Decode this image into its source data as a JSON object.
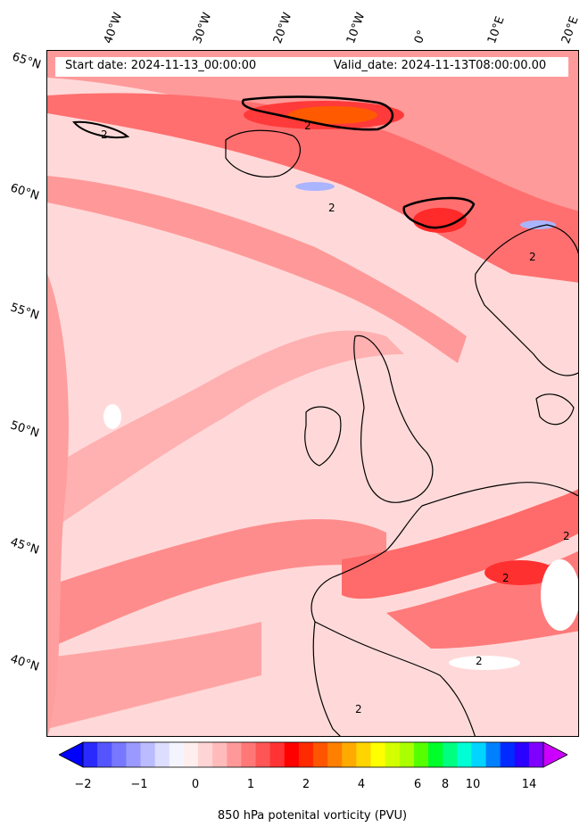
{
  "header": {
    "start_date": "Start date: 2024-11-13_00:00:00",
    "valid_date": "Valid_date: 2024-11-13T08:00:00.00"
  },
  "latitude_labels": [
    "65°N",
    "60°N",
    "55°N",
    "50°N",
    "45°N",
    "40°N"
  ],
  "longitude_labels": [
    "40°W",
    "30°W",
    "20°W",
    "10°W",
    "0°",
    "10°E",
    "20°E"
  ],
  "contour_label": "2",
  "colorbar": {
    "label": "850 hPa potenital vorticity (PVU)",
    "ticks": [
      "−2",
      "−1",
      "0",
      "1",
      "2",
      "4",
      "6",
      "8",
      "10",
      "14"
    ],
    "colors": [
      "#0000ff",
      "#2a2aff",
      "#5555ff",
      "#7777ff",
      "#9999ff",
      "#bbbbff",
      "#ddddff",
      "#f4f4ff",
      "#ffeeee",
      "#ffd4d4",
      "#ffbbbb",
      "#ff9999",
      "#ff7777",
      "#ff5555",
      "#ff3333",
      "#ff0000",
      "#ff2a00",
      "#ff5500",
      "#ff8000",
      "#ffaa00",
      "#ffd400",
      "#ffff00",
      "#d4ff00",
      "#aaff00",
      "#55ff00",
      "#00ff2a",
      "#00ff80",
      "#00ffd4",
      "#00d4ff",
      "#0080ff",
      "#002aff",
      "#2a00ff",
      "#8000ff",
      "#cc00ff"
    ]
  }
}
